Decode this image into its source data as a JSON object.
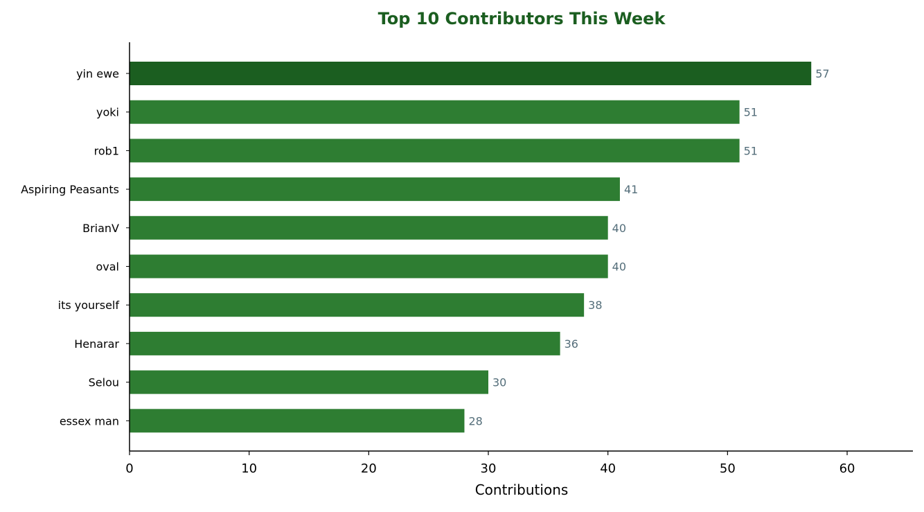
{
  "chart_data": {
    "type": "bar",
    "orientation": "horizontal",
    "title": "Top 10 Contributors This Week",
    "xlabel": "Contributions",
    "ylabel": "",
    "categories": [
      "yin ewe",
      "yoki",
      "rob1",
      "Aspiring Peasants",
      "BrianV",
      "oval",
      "its yourself",
      "Henarar",
      "Selou",
      "essex man"
    ],
    "values": [
      57,
      51,
      51,
      41,
      40,
      40,
      38,
      36,
      30,
      28
    ],
    "xlim": [
      0,
      65.5
    ],
    "xticks": [
      0,
      10,
      20,
      30,
      40,
      50,
      60
    ],
    "grid": false,
    "legend": "none",
    "data_labels": true,
    "colors": {
      "highlight": "#1b5e20",
      "bar": "#2e7d32",
      "title": "#1b5e20",
      "value_label": "#546e7a",
      "axis": "#000000",
      "text": "#000000"
    }
  }
}
